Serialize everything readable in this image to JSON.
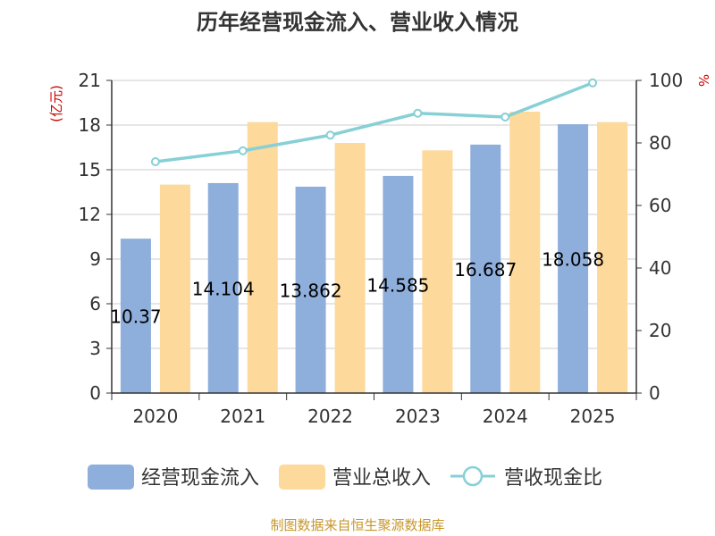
{
  "chart_data": {
    "type": "bar",
    "title": "历年经营现金流入、营业收入情况",
    "categories": [
      "2020",
      "2021",
      "2022",
      "2023",
      "2024",
      "2025"
    ],
    "series": [
      {
        "name": "经营现金流入",
        "type": "bar",
        "axis": "left",
        "color": "#8eaedb",
        "values": [
          10.37,
          14.104,
          13.862,
          14.585,
          16.687,
          18.058
        ],
        "data_labels": [
          "10.37",
          "14.104",
          "13.862",
          "14.585",
          "16.687",
          "18.058"
        ]
      },
      {
        "name": "营业总收入",
        "type": "bar",
        "axis": "left",
        "color": "#fdd99b",
        "values": [
          14.0,
          18.2,
          16.8,
          16.3,
          18.9,
          18.2
        ]
      },
      {
        "name": "营收现金比",
        "type": "line",
        "axis": "right",
        "color": "#86d0d6",
        "values": [
          74,
          77.5,
          82.5,
          89.5,
          88.3,
          99.2
        ]
      }
    ],
    "y_left": {
      "label": "(亿元)",
      "ylim": [
        0,
        21
      ],
      "ticks": [
        "0",
        "3",
        "6",
        "9",
        "12",
        "15",
        "18",
        "21"
      ]
    },
    "y_right": {
      "label": "%",
      "ylim": [
        0,
        100
      ],
      "ticks": [
        "0",
        "20",
        "40",
        "60",
        "80",
        "100"
      ]
    },
    "grid": true,
    "legend": "bottom",
    "source": "制图数据来自恒生聚源数据库"
  }
}
